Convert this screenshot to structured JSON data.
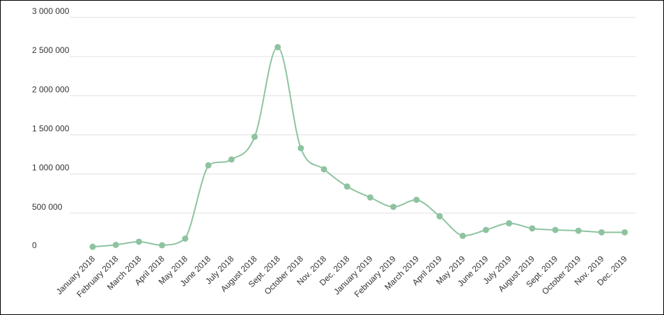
{
  "chart_data": {
    "type": "line",
    "title": "",
    "xlabel": "",
    "ylabel": "",
    "ylim": [
      0,
      3000000
    ],
    "yticks": [
      0,
      500000,
      1000000,
      1500000,
      2000000,
      2500000,
      3000000
    ],
    "ytick_labels": [
      "0",
      "500 000",
      "1 000 000",
      "1 500 000",
      "2 000 000",
      "2 500 000",
      "3 000 000"
    ],
    "grid": true,
    "line_color": "#8ec3a0",
    "categories": [
      "January 2018",
      "February 2018",
      "March 2018",
      "April 2018",
      "May 2018",
      "June 2018",
      "July 2018",
      "August 2018",
      "Sept. 2018",
      "October 2018",
      "Nov. 2018",
      "Dec. 2018",
      "January 2019",
      "February 2019",
      "March 2019",
      "April 2019",
      "May 2019",
      "June 2019",
      "July 2019",
      "August 2019",
      "Sept. 2019",
      "October 2019",
      "Nov. 2019",
      "Dec. 2019"
    ],
    "series": [
      {
        "values": [
          70000,
          95000,
          135000,
          90000,
          175000,
          1110000,
          1185000,
          1475000,
          2620000,
          1330000,
          1060000,
          840000,
          700000,
          580000,
          670000,
          460000,
          210000,
          285000,
          370000,
          305000,
          285000,
          275000,
          255000,
          255000
        ]
      }
    ]
  }
}
